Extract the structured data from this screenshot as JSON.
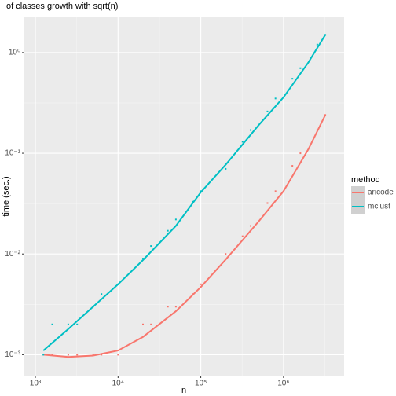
{
  "chart_data": {
    "type": "scatter",
    "title": "of classes growth with sqrt(n)",
    "x_label": "n",
    "y_label": "time (sec.)",
    "log_x": true,
    "log_y": true,
    "grid": true,
    "xlim": [
      736,
      5400000
    ],
    "ylim": [
      0.00062,
      2.24
    ],
    "xticks": [
      {
        "value": 1000,
        "label": "10³"
      },
      {
        "value": 10000,
        "label": "10⁴"
      },
      {
        "value": 100000,
        "label": "10⁵"
      },
      {
        "value": 1000000,
        "label": "10⁶"
      }
    ],
    "yticks": [
      {
        "value": 0.001,
        "label": "10⁻³"
      },
      {
        "value": 0.01,
        "label": "10⁻²"
      },
      {
        "value": 0.1,
        "label": "10⁻¹"
      },
      {
        "value": 1,
        "label": "10⁰"
      }
    ],
    "legend_title": "method",
    "legend_position": "right",
    "x": [
      1250,
      1600,
      2500,
      3200,
      5000,
      6300,
      10000,
      20000,
      25000,
      40000,
      50000,
      80000,
      100000,
      200000,
      320000,
      400000,
      640000,
      800000,
      1280000,
      1600000,
      2560000,
      3200000
    ],
    "fit_x": [
      1250,
      2500,
      5000,
      10000,
      20000,
      50000,
      100000,
      200000,
      500000,
      1000000,
      2000000,
      3200000
    ],
    "series": [
      {
        "name": "aricode",
        "color": "#F8766D",
        "values": [
          0.001,
          0.001,
          0.001,
          0.001,
          0.001,
          0.001,
          0.001,
          0.002,
          0.002,
          0.003,
          0.003,
          0.004,
          0.005,
          0.01,
          0.015,
          0.019,
          0.032,
          0.042,
          0.075,
          0.1,
          0.17,
          0.24
        ],
        "fit": [
          0.001,
          0.00095,
          0.00098,
          0.0011,
          0.0015,
          0.0027,
          0.0047,
          0.0088,
          0.021,
          0.042,
          0.11,
          0.24
        ]
      },
      {
        "name": "mclust",
        "color": "#00BFC4",
        "values": [
          0.001,
          0.002,
          0.002,
          0.002,
          0.003,
          0.004,
          0.005,
          0.009,
          0.012,
          0.017,
          0.022,
          0.033,
          0.042,
          0.07,
          0.13,
          0.17,
          0.26,
          0.35,
          0.55,
          0.7,
          1.2,
          1.5
        ],
        "fit": [
          0.0011,
          0.0018,
          0.003,
          0.005,
          0.0087,
          0.019,
          0.041,
          0.077,
          0.19,
          0.36,
          0.8,
          1.5
        ]
      }
    ]
  }
}
